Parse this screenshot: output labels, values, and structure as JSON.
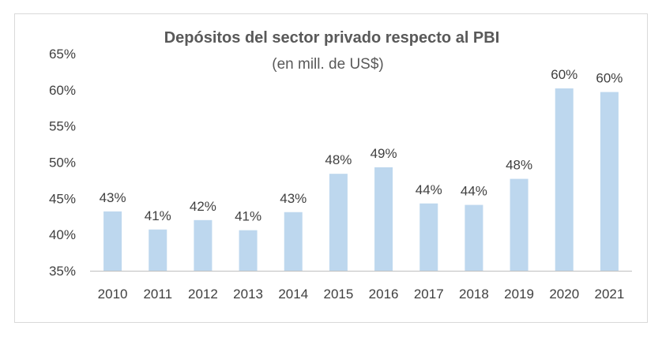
{
  "chart_data": {
    "type": "bar",
    "title": "Depósitos del sector privado respecto al PBI",
    "subtitle": "(en mill. de US$)",
    "categories": [
      "2010",
      "2011",
      "2012",
      "2013",
      "2014",
      "2015",
      "2016",
      "2017",
      "2018",
      "2019",
      "2020",
      "2021"
    ],
    "values": [
      43.2,
      40.7,
      42.0,
      40.6,
      43.1,
      48.4,
      49.3,
      44.3,
      44.1,
      47.7,
      60.2,
      59.7
    ],
    "data_labels": [
      "43%",
      "41%",
      "42%",
      "41%",
      "43%",
      "48%",
      "49%",
      "44%",
      "44%",
      "48%",
      "60%",
      "60%"
    ],
    "ylim": [
      35,
      65
    ],
    "yticks": [
      35,
      40,
      45,
      50,
      55,
      60,
      65
    ],
    "ytick_labels": [
      "35%",
      "40%",
      "45%",
      "50%",
      "55%",
      "60%",
      "65%"
    ],
    "xlabel": "",
    "ylabel": "",
    "grid": false,
    "legend": "none",
    "bar_color": "#bdd7ee"
  }
}
